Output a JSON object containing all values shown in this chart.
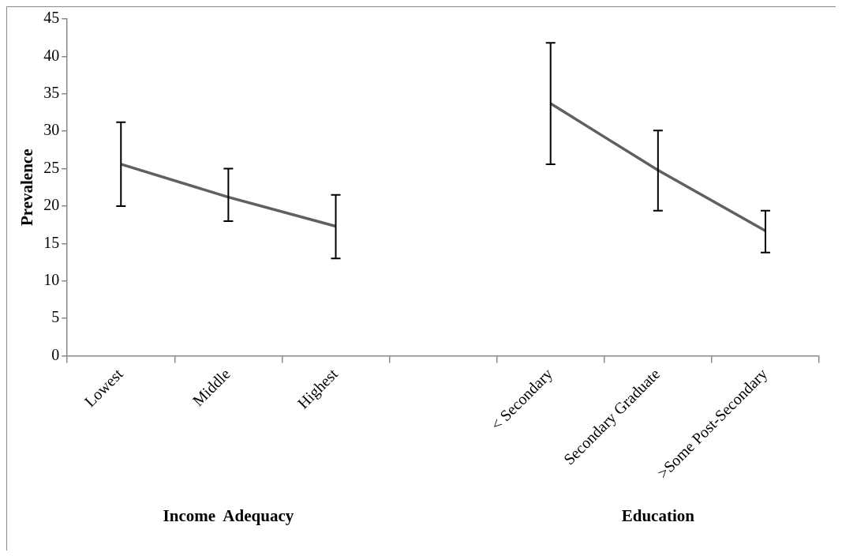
{
  "chart_data": {
    "type": "line",
    "ylabel": "Prevalence",
    "categories": [
      "Lowest",
      "Middle",
      "Highest",
      null,
      "< Secondary",
      "Secondary Graduate",
      ">Some Post-Secondary"
    ],
    "series": [
      {
        "color": "#606060",
        "values": [
          25.6,
          21.2,
          17.3,
          null,
          33.7,
          24.8,
          16.7
        ],
        "errors": [
          [
            20.0,
            31.2
          ],
          [
            18.0,
            25.0
          ],
          [
            13.0,
            21.5
          ],
          null,
          [
            25.6,
            41.8
          ],
          [
            19.4,
            30.1
          ],
          [
            13.8,
            19.4
          ]
        ]
      }
    ],
    "annotations": [
      "Income  Adequacy",
      "Education"
    ],
    "ylim": [
      0,
      45
    ],
    "yticks": [
      0,
      5,
      10,
      15,
      20,
      25,
      30,
      35,
      40,
      45
    ],
    "grid": false,
    "legend": false,
    "marker": "none",
    "line_style": "solid"
  }
}
